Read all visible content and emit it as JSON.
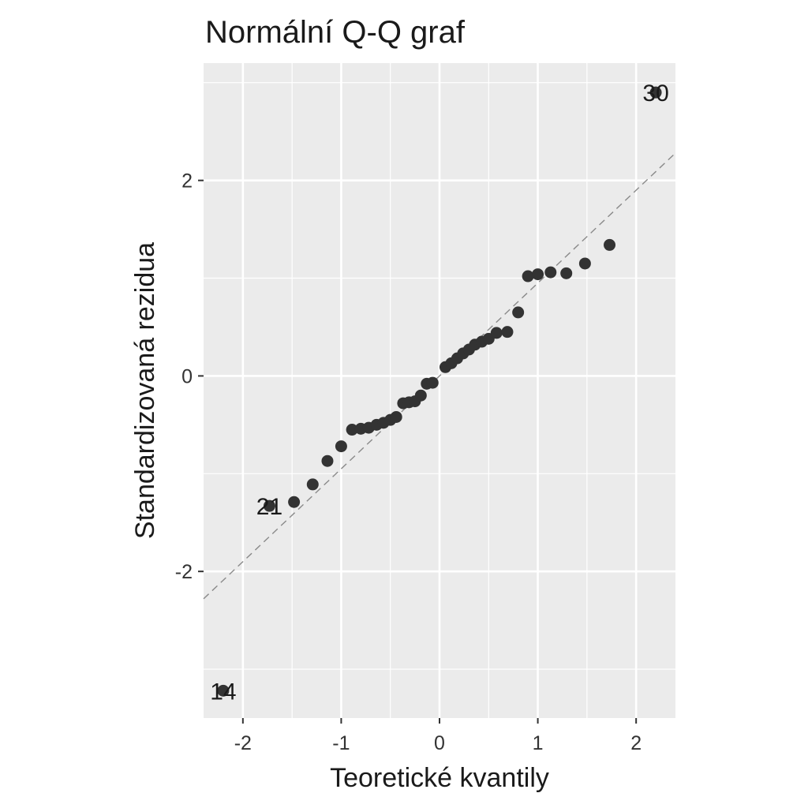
{
  "chart_data": {
    "type": "scatter",
    "title": "Normální Q-Q graf",
    "xlabel": "Teoretické kvantily",
    "ylabel": "Standardizovaná rezidua",
    "xlim": [
      -2.4,
      2.4
    ],
    "ylim": [
      -3.5,
      3.2
    ],
    "xticks": [
      -2,
      -1,
      0,
      1,
      2
    ],
    "xtick_labels": [
      "-2",
      "-1",
      "0",
      "1",
      "2"
    ],
    "yticks": [
      -2,
      0,
      2
    ],
    "ytick_labels": [
      "-2",
      "0",
      "2"
    ],
    "grid": true,
    "reference_line": {
      "style": "dashed",
      "slope": 0.95,
      "intercept": 0.0
    },
    "points": [
      {
        "x": -2.2,
        "y": -3.22
      },
      {
        "x": -1.73,
        "y": -1.33
      },
      {
        "x": -1.48,
        "y": -1.29
      },
      {
        "x": -1.29,
        "y": -1.11
      },
      {
        "x": -1.14,
        "y": -0.87
      },
      {
        "x": -1.0,
        "y": -0.72
      },
      {
        "x": -0.89,
        "y": -0.55
      },
      {
        "x": -0.8,
        "y": -0.54
      },
      {
        "x": -0.72,
        "y": -0.53
      },
      {
        "x": -0.64,
        "y": -0.5
      },
      {
        "x": -0.57,
        "y": -0.48
      },
      {
        "x": -0.5,
        "y": -0.45
      },
      {
        "x": -0.44,
        "y": -0.42
      },
      {
        "x": -0.37,
        "y": -0.28
      },
      {
        "x": -0.31,
        "y": -0.27
      },
      {
        "x": -0.25,
        "y": -0.26
      },
      {
        "x": -0.19,
        "y": -0.2
      },
      {
        "x": -0.13,
        "y": -0.08
      },
      {
        "x": -0.07,
        "y": -0.07
      },
      {
        "x": 0.06,
        "y": 0.09
      },
      {
        "x": 0.12,
        "y": 0.13
      },
      {
        "x": 0.18,
        "y": 0.18
      },
      {
        "x": 0.24,
        "y": 0.23
      },
      {
        "x": 0.3,
        "y": 0.27
      },
      {
        "x": 0.36,
        "y": 0.32
      },
      {
        "x": 0.43,
        "y": 0.35
      },
      {
        "x": 0.5,
        "y": 0.38
      },
      {
        "x": 0.58,
        "y": 0.44
      },
      {
        "x": 0.69,
        "y": 0.45
      },
      {
        "x": 0.8,
        "y": 0.65
      },
      {
        "x": 0.9,
        "y": 1.02
      },
      {
        "x": 1.0,
        "y": 1.04
      },
      {
        "x": 1.13,
        "y": 1.06
      },
      {
        "x": 1.29,
        "y": 1.05
      },
      {
        "x": 1.48,
        "y": 1.15
      },
      {
        "x": 1.73,
        "y": 1.34
      },
      {
        "x": 2.2,
        "y": 2.9
      }
    ],
    "point_labels": [
      {
        "text": "30",
        "x": 2.2,
        "y": 2.9
      },
      {
        "text": "21",
        "x": -1.73,
        "y": -1.33
      },
      {
        "text": "14",
        "x": -2.2,
        "y": -3.22
      }
    ]
  }
}
